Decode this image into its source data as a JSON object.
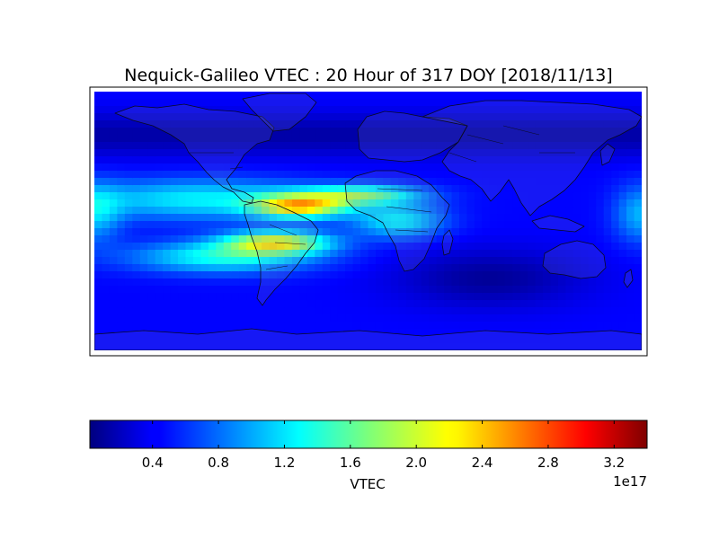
{
  "title": "Nequick-Galileo VTEC : 20 Hour of 317 DOY [2018/11/13]",
  "colorbar": {
    "label": "VTEC",
    "offset_text": "1e17",
    "ticks": [
      "0.4",
      "0.8",
      "1.2",
      "1.6",
      "2.0",
      "2.4",
      "2.8",
      "3.2"
    ],
    "tick_values": [
      0.4,
      0.8,
      1.2,
      1.6,
      2.0,
      2.4,
      2.8,
      3.2
    ],
    "range": [
      0.02,
      3.4
    ],
    "colormap": "jet"
  },
  "map": {
    "projection": "cylindrical",
    "lon_range": [
      -180,
      180
    ],
    "lat_range": [
      -90,
      90
    ],
    "grid_lon_step": 10,
    "grid_lat_step": 5
  }
}
